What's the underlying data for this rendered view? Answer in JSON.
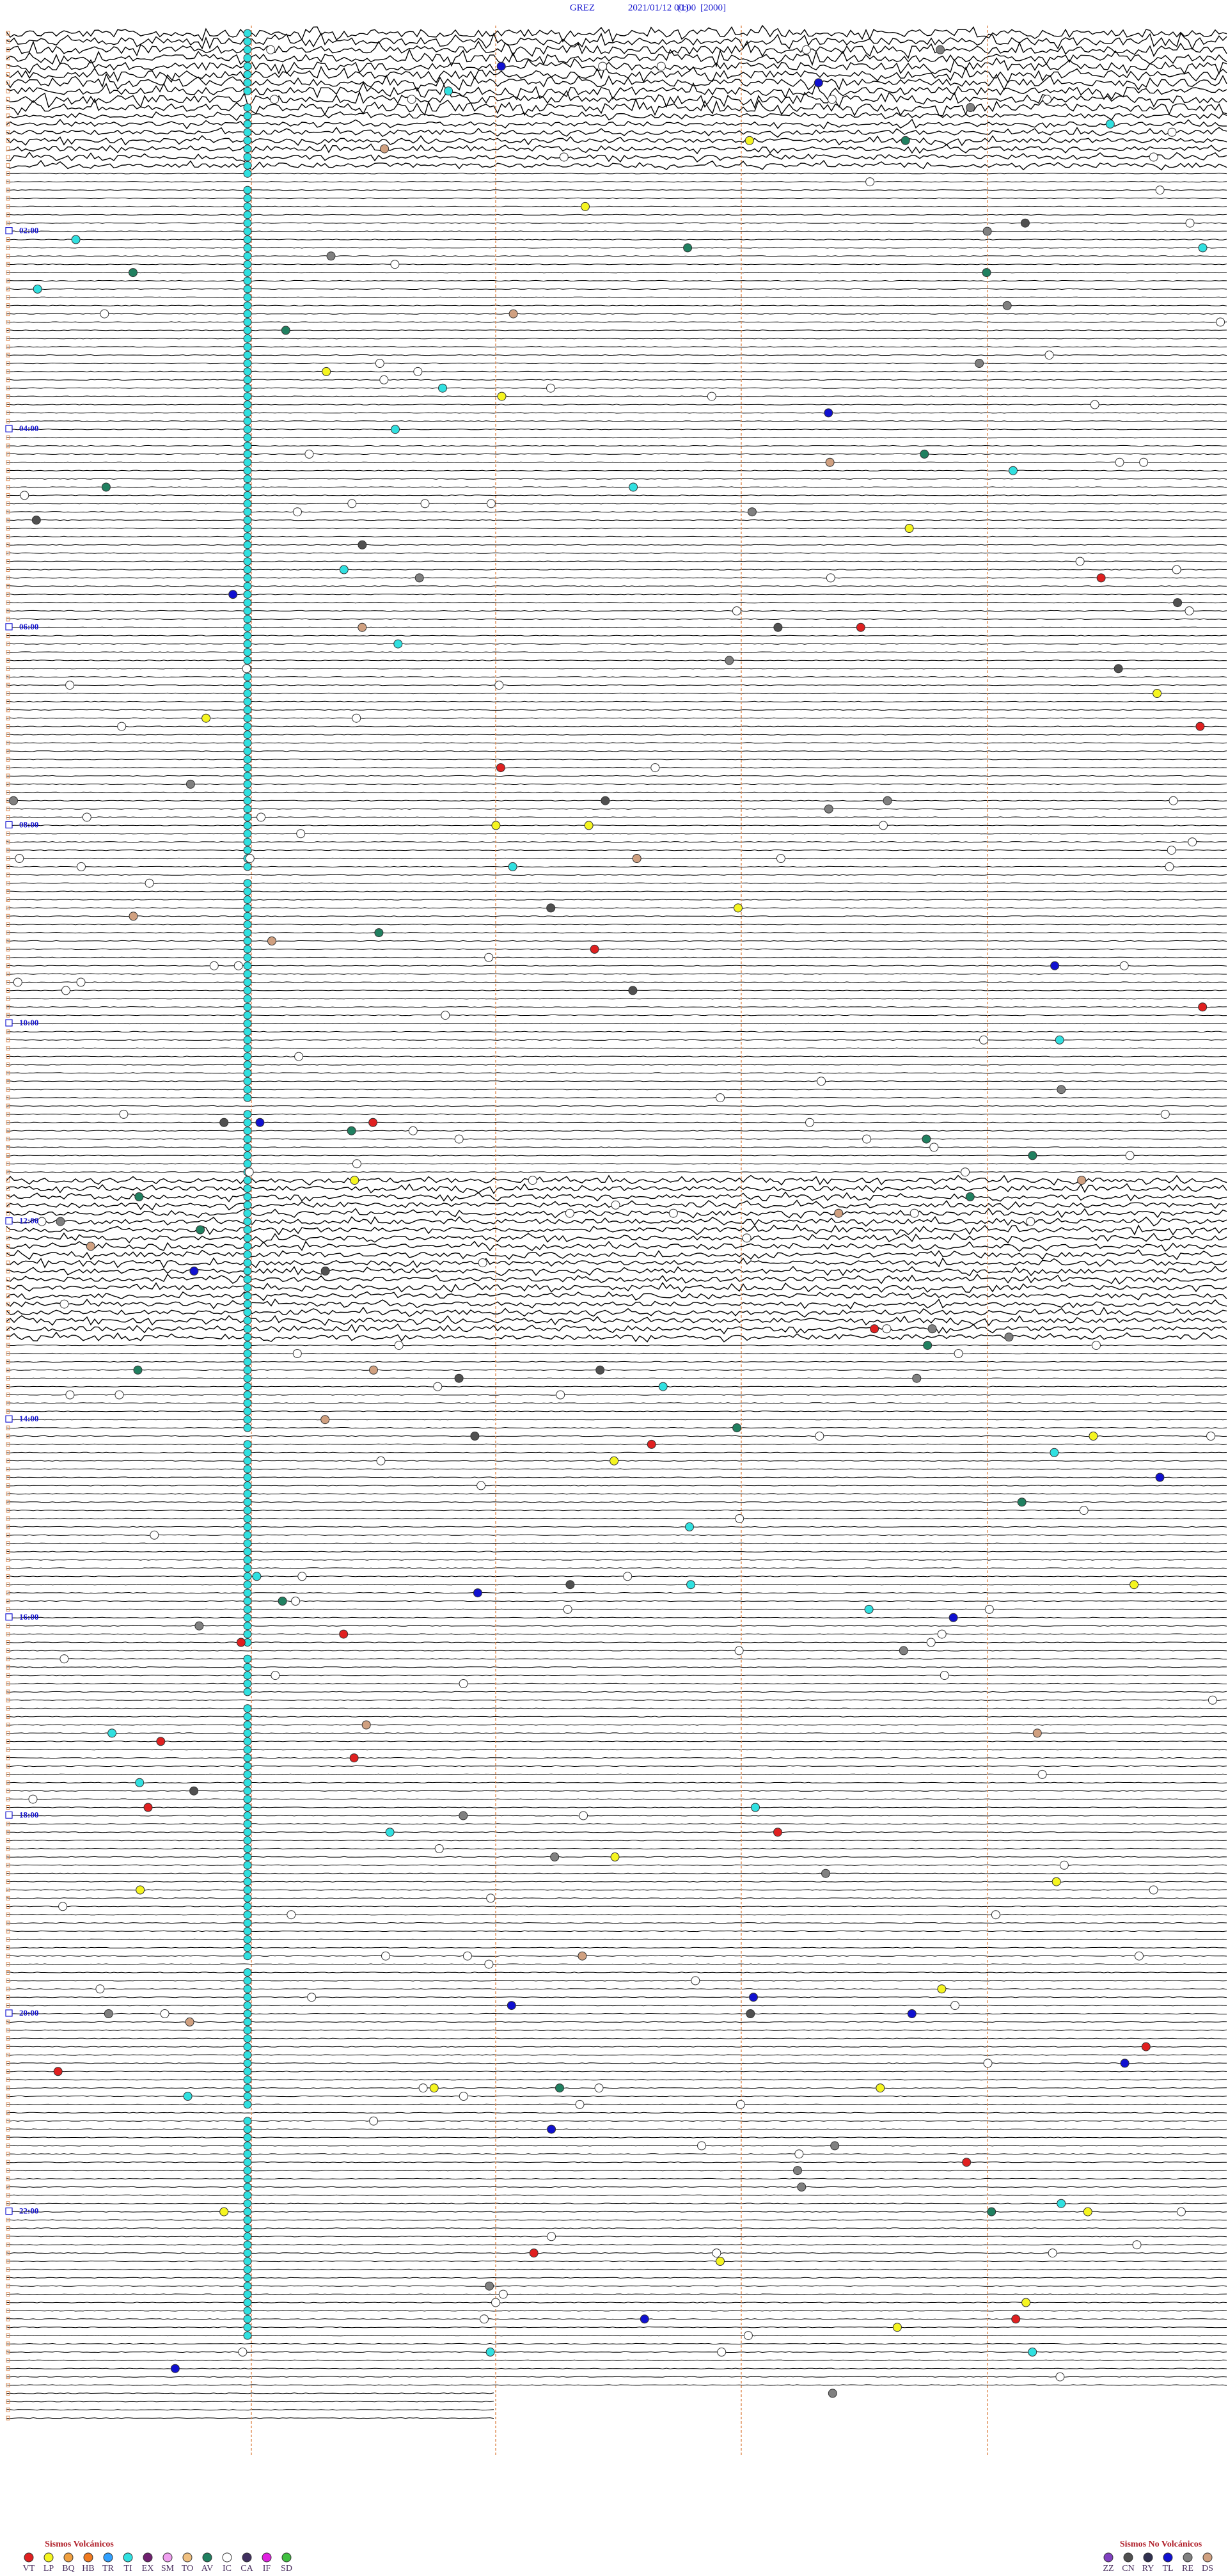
{
  "header": {
    "station": "GREZ",
    "datetime": "2021/01/12 00:00",
    "part": "(1)",
    "scale": "[2000]"
  },
  "hour_labels": [
    "02:00",
    "04:00",
    "06:00",
    "08:00",
    "10:00",
    "12:00",
    "14:00",
    "16:00",
    "18:00",
    "20:00",
    "22:00"
  ],
  "legend_volcanic": {
    "title": "Sismos Volcánicos",
    "items": [
      {
        "label": "VT",
        "color": "#e02020"
      },
      {
        "label": "LP",
        "color": "#f5f520"
      },
      {
        "label": "BQ",
        "color": "#f0a040"
      },
      {
        "label": "HB",
        "color": "#f07a20"
      },
      {
        "label": "TR",
        "color": "#30a0ff"
      },
      {
        "label": "TI",
        "color": "#30e0e0"
      },
      {
        "label": "EX",
        "color": "#702070"
      },
      {
        "label": "SM",
        "color": "#f0a0f0"
      },
      {
        "label": "TO",
        "color": "#f0c080"
      },
      {
        "label": "AV",
        "color": "#208060"
      },
      {
        "label": "IC",
        "color": "#ffffff"
      },
      {
        "label": "CA",
        "color": "#403060"
      },
      {
        "label": "IF",
        "color": "#e020e0"
      },
      {
        "label": "SD",
        "color": "#40c040"
      }
    ]
  },
  "legend_non_volcanic": {
    "title": "Sismos No Volcánicos",
    "items": [
      {
        "label": "ZZ",
        "color": "#8040c0"
      },
      {
        "label": "CN",
        "color": "#505050"
      },
      {
        "label": "RY",
        "color": "#303050"
      },
      {
        "label": "TL",
        "color": "#1010d0"
      },
      {
        "label": "RE",
        "color": "#808080"
      },
      {
        "label": "DS",
        "color": "#d0a080"
      }
    ]
  }
}
